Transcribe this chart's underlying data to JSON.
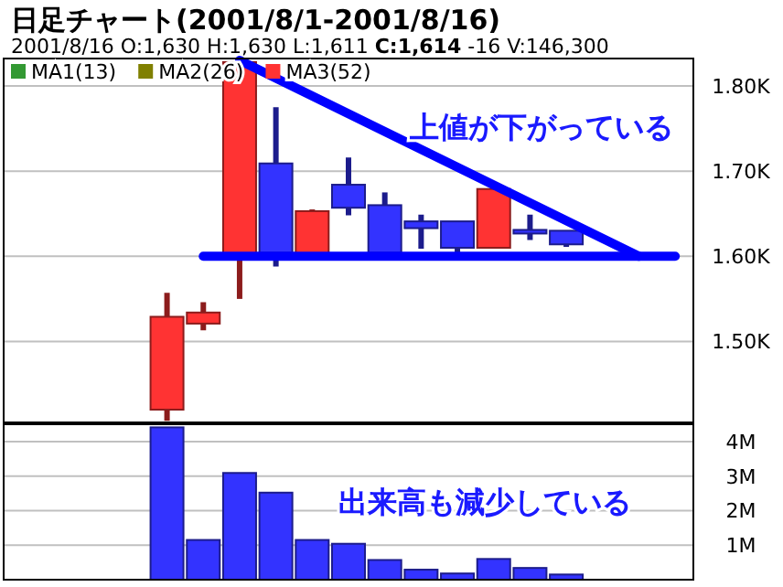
{
  "chart_data": [
    {
      "type": "candlestick",
      "title": "日足チャート(2001/8/1-2001/8/16)",
      "subtitle": "2001/8/16 O:1,630 H:1,630 L:1,611 **C:1,614** -16 V:146,300",
      "categories": [
        null,
        null,
        null,
        null,
        null,
        null,
        null,
        null,
        null,
        null,
        null,
        null,
        null,
        null,
        null,
        null,
        null,
        null,
        null
      ],
      "ohlc": [
        null,
        null,
        null,
        null,
        [
          1420,
          1557,
          1407,
          1529
        ],
        [
          1521,
          1546,
          1513,
          1534
        ],
        [
          1602,
          1828,
          1550,
          1828
        ],
        [
          1709,
          1775,
          1588,
          1604
        ],
        [
          1602,
          1655,
          1602,
          1653
        ],
        [
          1684,
          1716,
          1648,
          1657
        ],
        [
          1660,
          1675,
          1604,
          1604
        ],
        [
          1641,
          1649,
          1609,
          1633
        ],
        [
          1641,
          1641,
          1602,
          1610
        ],
        [
          1610,
          1679,
          1610,
          1679
        ],
        [
          1631,
          1649,
          1619,
          1628
        ],
        [
          1630,
          1630,
          1611,
          1614
        ],
        null,
        null,
        null
      ],
      "colors": [
        null,
        null,
        null,
        null,
        "#ff3333",
        "#ff3333",
        "#ff3333",
        "#3333ff",
        "#ff3333",
        "#3333ff",
        "#3333ff",
        "#3333ff",
        "#3333ff",
        "#ff3333",
        "#3333ff",
        "#3333ff",
        null,
        null,
        null
      ],
      "ylim": [
        1405,
        1830
      ],
      "yticks": [
        {
          "value": 1500,
          "label": "1.50K"
        },
        {
          "value": 1600,
          "label": "1.60K"
        },
        {
          "value": 1700,
          "label": "1.70K"
        },
        {
          "value": 1800,
          "label": "1.80K"
        }
      ],
      "grid": "y",
      "legend": "top left",
      "series": [
        {
          "name": "MA1(13)",
          "color": "#339933",
          "values": [
            null,
            null,
            null,
            null,
            null,
            null,
            null,
            null,
            null,
            null,
            null,
            null,
            null,
            null,
            null,
            null,
            null,
            null,
            null
          ]
        },
        {
          "name": "MA2(26)",
          "color": "#808000",
          "values": [
            null,
            null,
            null,
            null,
            null,
            null,
            null,
            null,
            null,
            null,
            null,
            null,
            null,
            null,
            null,
            null,
            null,
            null,
            null
          ]
        },
        {
          "name": "MA3(52)",
          "color": "#ff3333",
          "values": [
            null,
            null,
            null,
            null,
            null,
            null,
            null,
            null,
            null,
            null,
            null,
            null,
            null,
            null,
            null,
            null,
            null,
            null,
            null
          ]
        },
        {
          "type": "line",
          "color": "#0000ff",
          "values": [
            null,
            null,
            null,
            null,
            null,
            null,
            1830,
            null,
            null,
            null,
            null,
            null,
            null,
            null,
            null,
            null,
            null,
            1600,
            null
          ]
        },
        {
          "type": "line",
          "color": "#0000ff",
          "values": [
            null,
            null,
            null,
            null,
            null,
            1600,
            null,
            null,
            null,
            null,
            null,
            null,
            null,
            null,
            null,
            null,
            null,
            null,
            1600
          ]
        }
      ],
      "annotations": [
        "上値が下がっている"
      ]
    },
    {
      "type": "bar",
      "categories": [
        null,
        null,
        null,
        null,
        null,
        null,
        null,
        null,
        null,
        null,
        null,
        null,
        null,
        null,
        null,
        null,
        null,
        null,
        null
      ],
      "values": [
        null,
        null,
        null,
        null,
        4.41,
        1.15,
        3.09,
        2.52,
        1.15,
        1.04,
        0.57,
        0.29,
        0.18,
        0.6,
        0.34,
        0.15,
        null,
        null,
        null
      ],
      "color": "#3333ff",
      "ylim": [
        0,
        4.5
      ],
      "yticks": [
        {
          "value": 1,
          "label": "1M"
        },
        {
          "value": 2,
          "label": "2M"
        },
        {
          "value": 3,
          "label": "3M"
        },
        {
          "value": 4,
          "label": "4M"
        }
      ],
      "grid": "y",
      "annotations": [
        "出来高も減少している"
      ]
    }
  ]
}
